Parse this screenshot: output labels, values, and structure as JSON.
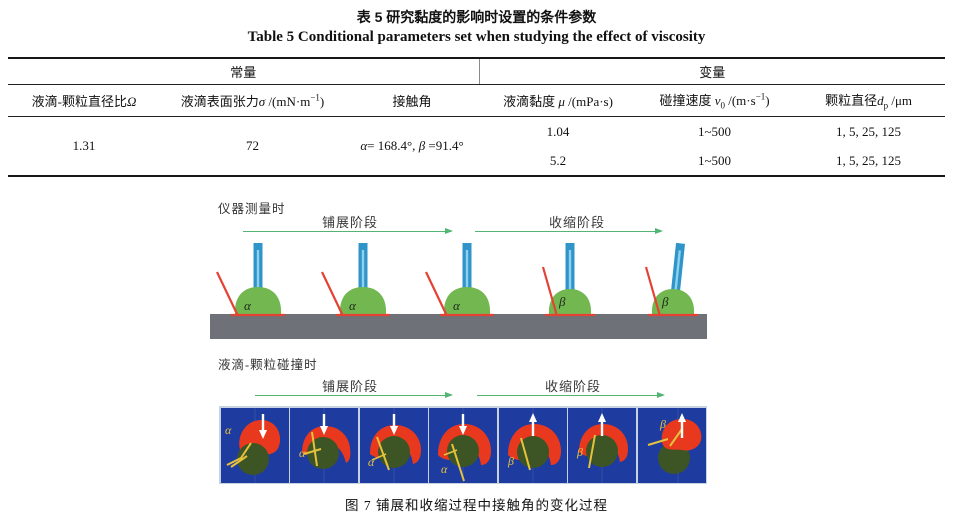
{
  "page": {
    "title_cn": "表 5  研究黏度的影响时设置的条件参数",
    "title_en": "Table 5   Conditional parameters set when studying the effect of viscosity"
  },
  "table": {
    "group_headers": [
      {
        "label": "常量"
      },
      {
        "label": "变量"
      }
    ],
    "columns": [
      {
        "label_html": "液滴-颗粒直径比<i>Ω</i>"
      },
      {
        "label_html": "液滴表面张力<i>σ</i> /(mN·m<sup>−1</sup>)"
      },
      {
        "label_html": "接触角"
      },
      {
        "label_html": "液滴黏度 <i>μ</i> /(mPa·s)"
      },
      {
        "label_html": "碰撞速度 <i>v</i><sub>0</sub> /(m·s<sup>−1</sup>)"
      },
      {
        "label_html": "颗粒直径<i>d</i><sub>p</sub> /μm"
      }
    ],
    "constants": {
      "diameter_ratio": "1.31",
      "surface_tension": "72",
      "contact_angle_html": "<i>α</i>= 168.4°, <i>β</i> =91.4°"
    },
    "variable_rows": [
      {
        "viscosity": "1.04",
        "velocity": "1~500",
        "particle_diameters": "1, 5, 25, 125"
      },
      {
        "viscosity": "5.2",
        "velocity": "1~500",
        "particle_diameters": "1, 5, 25, 125"
      }
    ]
  },
  "figure": {
    "instrument_label": "仪器测量时",
    "collision_label": "液滴-颗粒碰撞时",
    "spreading_label": "铺展阶段",
    "receding_label": "收缩阶段",
    "instrument_droplets": [
      {
        "angle": "α"
      },
      {
        "angle": "α"
      },
      {
        "angle": "α"
      },
      {
        "angle": "β"
      },
      {
        "angle": "β"
      }
    ],
    "collision_panels": [
      {
        "angle": "α",
        "arrow": "down"
      },
      {
        "angle": "α",
        "arrow": "down"
      },
      {
        "angle": "α",
        "arrow": "down"
      },
      {
        "angle": "α",
        "arrow": "down"
      },
      {
        "angle": "β",
        "arrow": "up"
      },
      {
        "angle": "β",
        "arrow": "up"
      },
      {
        "angle": "β",
        "arrow": "up"
      }
    ],
    "caption": "图 7  铺展和收缩过程中接触角的变化过程"
  },
  "colors": {
    "stage_arrow_green": "#53b573",
    "needle_blue": "#2f94c8",
    "droplet_green": "#73b751",
    "contact_line_red": "#e34234",
    "substrate_gray": "#6e7278",
    "panel_blue": "#1e3ca0",
    "droplet_red": "#e8391f",
    "particle_green": "#3d5524",
    "angle_marker_yellow": "#e6c23c"
  }
}
